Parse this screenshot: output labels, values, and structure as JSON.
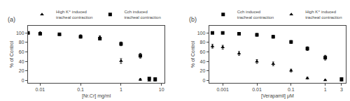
{
  "chart_data": [
    {
      "type": "scatter",
      "title": "(a)",
      "xlabel": "[Nr.Cr] mg/ml",
      "ylabel": "% of Control",
      "log": "x",
      "grid": false,
      "legend": "top",
      "xlim": [
        0.005,
        12
      ],
      "xticks": [
        0.01,
        0.1,
        1,
        10
      ],
      "ylim": [
        -5,
        115
      ],
      "yticks": [
        0,
        20,
        40,
        60,
        80,
        100
      ],
      "series": [
        {
          "name": "High K⁺ induced\ntracheal contraction",
          "marker": "triangle",
          "color": "#000000",
          "x": [
            0.005,
            0.01,
            0.03,
            0.1,
            0.3,
            1.0,
            3.0,
            5.0,
            7.0
          ],
          "values": [
            100,
            100,
            97,
            93,
            91,
            41,
            2,
            0,
            0
          ],
          "yerr": [
            2,
            2,
            2,
            3,
            3,
            5,
            2,
            1,
            1
          ]
        },
        {
          "name": "Cch induced\ntracheal contraction",
          "marker": "square",
          "color": "#000000",
          "x": [
            0.005,
            0.01,
            0.03,
            0.1,
            0.3,
            1.0,
            3.0,
            5.0,
            7.0
          ],
          "values": [
            100,
            98,
            97,
            92,
            88,
            77,
            52,
            4,
            3
          ],
          "yerr": [
            2,
            2,
            2,
            3,
            3,
            4,
            5,
            2,
            1
          ]
        }
      ]
    },
    {
      "type": "scatter",
      "title": "(b)",
      "xlabel": "[Verapamil] μM",
      "ylabel": "% of Control",
      "log": "x",
      "grid": false,
      "legend": "top",
      "xlim": [
        0.0004,
        4.0
      ],
      "xticks": [
        0.001,
        0.01,
        0.1,
        1,
        3
      ],
      "ylim": [
        -5,
        115
      ],
      "yticks": [
        0,
        20,
        40,
        60,
        80,
        100
      ],
      "series": [
        {
          "name": "Cch induced\ntracheal contraction",
          "marker": "square",
          "color": "#000000",
          "x": [
            0.0005,
            0.001,
            0.003,
            0.01,
            0.03,
            0.1,
            0.3,
            1.0,
            3.0
          ],
          "values": [
            100,
            100,
            98,
            96,
            92,
            81,
            67,
            48,
            3
          ],
          "yerr": [
            2,
            2,
            2,
            3,
            3,
            3,
            4,
            5,
            2
          ]
        },
        {
          "name": "High K⁺ induced\ntracheal contraction",
          "marker": "triangle",
          "color": "#000000",
          "x": [
            0.0005,
            0.001,
            0.003,
            0.01,
            0.03,
            0.1,
            0.3,
            1.0,
            3.0
          ],
          "values": [
            72,
            70,
            57,
            40,
            35,
            21,
            5,
            1,
            0
          ],
          "yerr": [
            4,
            4,
            4,
            4,
            4,
            3,
            2,
            1,
            1
          ]
        }
      ]
    }
  ]
}
